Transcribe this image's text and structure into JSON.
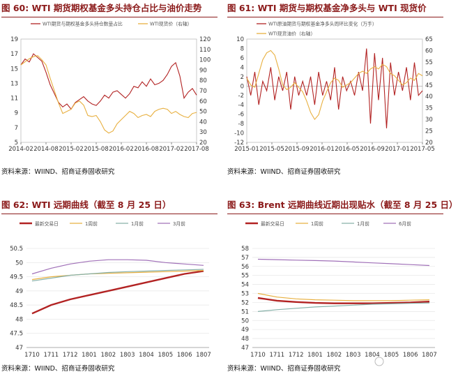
{
  "panels": [
    {
      "id": "p60",
      "title": "图 60: WTI 期货期权基金多头持仓占比与油价走势",
      "source": "资料来源：WIIND、招商证券固收研究",
      "chart_data": {
        "type": "line",
        "legend": [
          {
            "name": "WTI期货与期权基金多头持仓数量占比",
            "color": "#b22222"
          },
          {
            "name": "WTI现货价（右轴）",
            "color": "#e8b040"
          }
        ],
        "xticks": [
          "2014-02",
          "2014-08",
          "2015-02",
          "2015-08",
          "2016-02",
          "2016-08",
          "2017-02",
          "2017-08"
        ],
        "ylim_left": [
          5,
          19
        ],
        "yticks_left": [
          5,
          7,
          9,
          11,
          13,
          15,
          17,
          19
        ],
        "ylim_right": [
          20,
          120
        ],
        "yticks_right": [
          20,
          30,
          40,
          50,
          60,
          70,
          80,
          90,
          100,
          110,
          120
        ],
        "x_range": [
          0,
          42
        ],
        "series": [
          {
            "name": "WTI期货与期权基金多头持仓数量占比",
            "axis": "left",
            "color": "#b22222",
            "x": [
              0,
              1,
              2,
              3,
              4,
              5,
              6,
              7,
              8,
              9,
              10,
              11,
              12,
              13,
              14,
              15,
              16,
              17,
              18,
              19,
              20,
              21,
              22,
              23,
              24,
              25,
              26,
              27,
              28,
              29,
              30,
              31,
              32,
              33,
              34,
              35,
              36,
              37,
              38,
              39,
              40,
              41,
              42
            ],
            "y": [
              15.5,
              16.3,
              15.9,
              17.0,
              16.5,
              16.0,
              14.5,
              12.8,
              11.6,
              10.4,
              9.8,
              10.2,
              9.5,
              10.4,
              10.8,
              11.2,
              10.6,
              10.2,
              10.0,
              10.6,
              11.4,
              11.0,
              11.8,
              12.0,
              11.5,
              11.0,
              11.6,
              12.6,
              12.4,
              13.2,
              12.6,
              13.6,
              12.8,
              13.0,
              13.4,
              14.2,
              15.3,
              15.8,
              14.0,
              11.0,
              11.8,
              12.3,
              11.4
            ]
          },
          {
            "name": "WTI现货价（右轴）",
            "axis": "right",
            "color": "#e8b040",
            "x": [
              0,
              1,
              2,
              3,
              4,
              5,
              6,
              7,
              8,
              9,
              10,
              11,
              12,
              13,
              14,
              15,
              16,
              17,
              18,
              19,
              20,
              21,
              22,
              23,
              24,
              25,
              26,
              27,
              28,
              29,
              30,
              31,
              32,
              33,
              34,
              35,
              36,
              37,
              38,
              39,
              40,
              41,
              42
            ],
            "y": [
              95,
              98,
              101,
              103,
              104,
              100,
              95,
              82,
              70,
              58,
              48,
              50,
              52,
              58,
              60,
              56,
              46,
              45,
              46,
              40,
              32,
              29,
              31,
              38,
              42,
              46,
              50,
              48,
              44,
              46,
              47,
              45,
              50,
              52,
              53,
              52,
              48,
              50,
              47,
              45,
              44,
              48,
              49
            ]
          }
        ]
      }
    },
    {
      "id": "p61",
      "title": "图 61: WTI 期货与期权基金净多头与 WTI 现货价",
      "source": "资料来源：WIIND、招商证券固收研究",
      "chart_data": {
        "type": "line",
        "legend": [
          {
            "name": "WTI原油期货与期权基金净多头周环比变化（万手）",
            "color": "#b22222"
          },
          {
            "name": "WTI现货油价（右轴）",
            "color": "#e8b040"
          }
        ],
        "xticks": [
          "2015-01",
          "2015-05",
          "2015-09",
          "2016-01",
          "2016-05",
          "2016-09",
          "2017-01",
          "2017-05"
        ],
        "ylim_left": [
          -12,
          10
        ],
        "yticks_left": [
          -12,
          -10,
          -8,
          -6,
          -4,
          -2,
          0,
          2,
          4,
          6,
          8,
          10
        ],
        "ylim_right": [
          20,
          65
        ],
        "yticks_right": [
          20,
          25,
          30,
          35,
          40,
          45,
          50,
          55,
          60,
          65
        ],
        "x_range": [
          0,
          44
        ],
        "series": [
          {
            "name": "WTI原油期货与期权基金净多头周环比变化（万手）",
            "axis": "left",
            "color": "#b22222",
            "x": [
              0,
              1,
              2,
              3,
              4,
              5,
              6,
              7,
              8,
              9,
              10,
              11,
              12,
              13,
              14,
              15,
              16,
              17,
              18,
              19,
              20,
              21,
              22,
              23,
              24,
              25,
              26,
              27,
              28,
              29,
              30,
              31,
              32,
              33,
              34,
              35,
              36,
              37,
              38,
              39,
              40,
              41,
              42,
              43,
              44
            ],
            "y": [
              2,
              -2,
              3,
              -4,
              1,
              -1,
              4,
              -3,
              2,
              -1,
              3,
              -5,
              2,
              -2,
              1,
              -2,
              2,
              -4,
              3,
              -2,
              1,
              -3,
              4,
              -5,
              2,
              -1,
              1,
              -2,
              3,
              -1,
              8,
              -8,
              7,
              -3,
              6,
              -9,
              5,
              -2,
              3,
              -1,
              4,
              -3,
              5,
              -2,
              -1
            ]
          },
          {
            "name": "WTI现货油价（右轴）",
            "axis": "right",
            "color": "#e8b040",
            "x": [
              0,
              1,
              2,
              3,
              4,
              5,
              6,
              7,
              8,
              9,
              10,
              11,
              12,
              13,
              14,
              15,
              16,
              17,
              18,
              19,
              20,
              21,
              22,
              23,
              24,
              25,
              26,
              27,
              28,
              29,
              30,
              31,
              32,
              33,
              34,
              35,
              36,
              37,
              38,
              39,
              40,
              41,
              42,
              43,
              44
            ],
            "y": [
              48,
              45,
              44,
              50,
              56,
              59,
              60,
              58,
              52,
              45,
              43,
              44,
              46,
              44,
              42,
              38,
              33,
              30,
              32,
              38,
              42,
              46,
              48,
              47,
              44,
              45,
              46,
              48,
              50,
              51,
              50,
              52,
              53,
              52,
              54,
              53,
              50,
              49,
              47,
              45,
              46,
              48,
              47,
              50,
              49
            ]
          }
        ]
      }
    },
    {
      "id": "p62",
      "title": "图 62: WTI 远期曲线（截至 8 月 25 日）",
      "source": "资料来源：WIIND、招商证券固收研究",
      "chart_data": {
        "type": "line",
        "legend": [
          {
            "name": "最新交易日",
            "color": "#b22222"
          },
          {
            "name": "1周前",
            "color": "#e8b040"
          },
          {
            "name": "1月前",
            "color": "#86b0a8"
          },
          {
            "name": "3月前",
            "color": "#a070b8"
          }
        ],
        "categories": [
          "1710",
          "1711",
          "1712",
          "1801",
          "1802",
          "1803",
          "1804",
          "1805",
          "1806",
          "1807"
        ],
        "ylim": [
          47,
          50.5
        ],
        "yticks": [
          47,
          47.5,
          48,
          48.5,
          49,
          49.5,
          50,
          50.5
        ],
        "series": [
          {
            "name": "最新交易日",
            "color": "#b22222",
            "values": [
              48.2,
              48.5,
              48.7,
              48.85,
              49.0,
              49.15,
              49.3,
              49.45,
              49.6,
              49.7
            ]
          },
          {
            "name": "1周前",
            "color": "#e8b040",
            "values": [
              49.4,
              49.5,
              49.55,
              49.6,
              49.62,
              49.64,
              49.66,
              49.68,
              49.7,
              49.72
            ]
          },
          {
            "name": "1月前",
            "color": "#86b0a8",
            "values": [
              49.35,
              49.45,
              49.55,
              49.6,
              49.65,
              49.68,
              49.7,
              49.72,
              49.74,
              49.76
            ]
          },
          {
            "name": "3月前",
            "color": "#a070b8",
            "values": [
              49.6,
              49.8,
              49.95,
              50.05,
              50.1,
              50.1,
              50.08,
              50.0,
              49.95,
              49.9
            ]
          }
        ]
      }
    },
    {
      "id": "p63",
      "title": "图 63: Brent 远期曲线近期出现贴水（截至 8 月 25 日）",
      "source": "资料来源：WIIND、招商证券固收研究",
      "chart_data": {
        "type": "line",
        "legend": [
          {
            "name": "最新交易日",
            "color": "#b22222"
          },
          {
            "name": "1周前",
            "color": "#e8b040"
          },
          {
            "name": "1月前",
            "color": "#86b0a8"
          },
          {
            "name": "6月前",
            "color": "#a070b8"
          }
        ],
        "categories": [
          "1710",
          "1711",
          "1712",
          "1801",
          "1802",
          "1803",
          "1804",
          "1805",
          "1806",
          "1807"
        ],
        "ylim": [
          47,
          58
        ],
        "yticks": [
          47,
          48,
          49,
          50,
          51,
          52,
          53,
          54,
          55,
          56,
          57,
          58
        ],
        "series": [
          {
            "name": "最新交易日",
            "color": "#b22222",
            "values": [
              52.5,
              52.2,
              52.05,
              51.95,
              51.9,
              51.9,
              51.9,
              51.95,
              52.0,
              52.1
            ]
          },
          {
            "name": "1周前",
            "color": "#e8b040",
            "values": [
              53.0,
              52.6,
              52.4,
              52.3,
              52.25,
              52.2,
              52.2,
              52.2,
              52.25,
              52.3
            ]
          },
          {
            "name": "1月前",
            "color": "#86b0a8",
            "values": [
              51.0,
              51.2,
              51.35,
              51.5,
              51.6,
              51.7,
              51.8,
              51.85,
              51.9,
              51.95
            ]
          },
          {
            "name": "6月前",
            "color": "#a070b8",
            "values": [
              56.8,
              56.75,
              56.7,
              56.65,
              56.6,
              56.5,
              56.4,
              56.3,
              56.2,
              56.1
            ]
          }
        ]
      }
    }
  ],
  "watermark": "安享平流（图标）"
}
